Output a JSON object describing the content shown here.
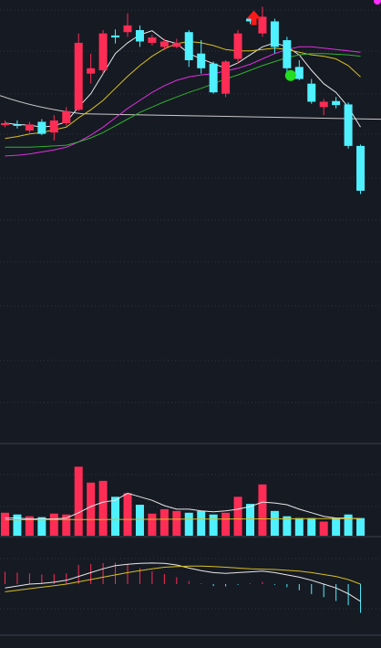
{
  "colors": {
    "background": "#161a23",
    "grid": "#2e3440",
    "divider": "#3a404c",
    "up": "#ff2d55",
    "down": "#4ff0ff",
    "ma_white": "#e8e8e8",
    "ma_yellow": "#d8c020",
    "ma_magenta": "#e030e0",
    "ma_green": "#30b030",
    "baseline": "#c8c8c8",
    "buy_marker": "#ff1a1a",
    "sell_marker": "#22dd22",
    "corner_dot": "#ff2bff"
  },
  "chart_data": [
    {
      "type": "candlestick",
      "name": "price",
      "baseline": 9.8,
      "ylim": [
        7.0,
        11.5
      ],
      "candles": [
        {
          "o": 9.63,
          "h": 9.7,
          "l": 9.6,
          "c": 9.66
        },
        {
          "o": 9.64,
          "h": 9.7,
          "l": 9.58,
          "c": 9.62
        },
        {
          "o": 9.55,
          "h": 9.68,
          "l": 9.52,
          "c": 9.64
        },
        {
          "o": 9.68,
          "h": 9.72,
          "l": 9.48,
          "c": 9.5
        },
        {
          "o": 9.52,
          "h": 9.78,
          "l": 9.4,
          "c": 9.7
        },
        {
          "o": 9.66,
          "h": 9.9,
          "l": 9.62,
          "c": 9.84
        },
        {
          "o": 9.86,
          "h": 11.0,
          "l": 9.84,
          "c": 10.86
        },
        {
          "o": 10.4,
          "h": 10.7,
          "l": 10.25,
          "c": 10.48
        },
        {
          "o": 10.45,
          "h": 11.05,
          "l": 10.4,
          "c": 11.0
        },
        {
          "o": 10.97,
          "h": 11.06,
          "l": 10.85,
          "c": 10.94
        },
        {
          "o": 11.02,
          "h": 11.3,
          "l": 10.95,
          "c": 11.12
        },
        {
          "o": 11.05,
          "h": 11.12,
          "l": 10.8,
          "c": 10.88
        },
        {
          "o": 10.86,
          "h": 10.98,
          "l": 10.82,
          "c": 10.94
        },
        {
          "o": 10.8,
          "h": 10.92,
          "l": 10.75,
          "c": 10.88
        },
        {
          "o": 10.8,
          "h": 10.92,
          "l": 10.78,
          "c": 10.86
        },
        {
          "o": 11.02,
          "h": 11.05,
          "l": 10.5,
          "c": 10.6
        },
        {
          "o": 10.7,
          "h": 10.9,
          "l": 10.4,
          "c": 10.48
        },
        {
          "o": 10.55,
          "h": 10.58,
          "l": 10.1,
          "c": 10.12
        },
        {
          "o": 10.1,
          "h": 10.6,
          "l": 10.05,
          "c": 10.58
        },
        {
          "o": 10.62,
          "h": 11.05,
          "l": 10.55,
          "c": 11.0
        },
        {
          "o": 11.22,
          "h": 11.27,
          "l": 11.14,
          "c": 11.18
        },
        {
          "o": 11.0,
          "h": 11.4,
          "l": 10.95,
          "c": 11.25
        },
        {
          "o": 11.18,
          "h": 11.22,
          "l": 10.7,
          "c": 10.8
        },
        {
          "o": 10.9,
          "h": 10.95,
          "l": 10.42,
          "c": 10.48
        },
        {
          "o": 10.5,
          "h": 10.6,
          "l": 10.3,
          "c": 10.32
        },
        {
          "o": 10.25,
          "h": 10.32,
          "l": 9.95,
          "c": 9.98
        },
        {
          "o": 9.9,
          "h": 10.02,
          "l": 9.78,
          "c": 9.98
        },
        {
          "o": 9.99,
          "h": 10.05,
          "l": 9.88,
          "c": 9.93
        },
        {
          "o": 9.94,
          "h": 9.97,
          "l": 9.28,
          "c": 9.32
        },
        {
          "o": 9.32,
          "h": 9.34,
          "l": 8.6,
          "c": 8.65
        }
      ],
      "moving_averages": [
        {
          "color_key": "ma_white",
          "values": [
            9.66,
            9.64,
            9.63,
            9.6,
            9.62,
            9.68,
            9.9,
            10.1,
            10.4,
            10.7,
            10.86,
            10.98,
            11.04,
            10.9,
            10.85,
            10.7,
            10.62,
            10.55,
            10.48,
            10.56,
            10.68,
            10.8,
            10.86,
            10.8,
            10.68,
            10.45,
            10.25,
            10.12,
            9.9,
            9.6
          ]
        },
        {
          "color_key": "ma_yellow",
          "values": [
            9.43,
            9.46,
            9.5,
            9.52,
            9.56,
            9.6,
            9.74,
            9.86,
            10.0,
            10.18,
            10.36,
            10.52,
            10.66,
            10.77,
            10.85,
            10.88,
            10.86,
            10.82,
            10.76,
            10.74,
            10.74,
            10.76,
            10.78,
            10.76,
            10.72,
            10.68,
            10.66,
            10.62,
            10.52,
            10.35
          ]
        },
        {
          "color_key": "ma_magenta",
          "values": [
            9.17,
            9.18,
            9.2,
            9.23,
            9.26,
            9.3,
            9.38,
            9.48,
            9.6,
            9.74,
            9.88,
            10.0,
            10.12,
            10.22,
            10.3,
            10.35,
            10.38,
            10.4,
            10.44,
            10.48,
            10.54,
            10.62,
            10.7,
            10.76,
            10.8,
            10.8,
            10.78,
            10.76,
            10.74,
            10.72
          ]
        },
        {
          "color_key": "ma_green",
          "values": [
            9.3,
            9.3,
            9.3,
            9.31,
            9.32,
            9.33,
            9.38,
            9.44,
            9.52,
            9.62,
            9.72,
            9.82,
            9.9,
            9.98,
            10.05,
            10.12,
            10.18,
            10.25,
            10.32,
            10.38,
            10.45,
            10.52,
            10.58,
            10.64,
            10.68,
            10.7,
            10.7,
            10.69,
            10.68,
            10.66
          ]
        }
      ]
    },
    {
      "type": "bar",
      "name": "volume",
      "ylim": [
        0,
        100
      ],
      "values": [
        26,
        24,
        22,
        21,
        25,
        24,
        78,
        60,
        62,
        44,
        48,
        35,
        25,
        30,
        28,
        26,
        28,
        24,
        26,
        44,
        36,
        58,
        28,
        22,
        20,
        20,
        16,
        20,
        24,
        20
      ],
      "ma": [
        20,
        20,
        19,
        19,
        19,
        20,
        26,
        33,
        38,
        40,
        48,
        44,
        40,
        34,
        30,
        30,
        28,
        27,
        28,
        30,
        33,
        38,
        37,
        35,
        30,
        26,
        22,
        20,
        20,
        19
      ]
    },
    {
      "type": "bar",
      "name": "macd",
      "ylim": [
        -1.0,
        1.0
      ],
      "values": [
        0.32,
        0.3,
        0.28,
        0.25,
        0.26,
        0.28,
        0.5,
        0.52,
        0.55,
        0.56,
        0.52,
        0.42,
        0.34,
        0.26,
        0.18,
        0.08,
        0.02,
        -0.05,
        -0.06,
        -0.02,
        0.02,
        0.06,
        -0.02,
        -0.08,
        -0.16,
        -0.26,
        -0.34,
        -0.44,
        -0.55,
        -0.75
      ],
      "line_white": [
        -0.1,
        -0.05,
        0.0,
        0.02,
        0.05,
        0.1,
        0.2,
        0.3,
        0.4,
        0.48,
        0.52,
        0.54,
        0.55,
        0.54,
        0.5,
        0.42,
        0.35,
        0.3,
        0.28,
        0.3,
        0.32,
        0.34,
        0.3,
        0.24,
        0.18,
        0.1,
        0.0,
        -0.1,
        -0.25,
        -0.45
      ],
      "line_yellow": [
        -0.2,
        -0.16,
        -0.12,
        -0.08,
        -0.04,
        0.0,
        0.06,
        0.12,
        0.18,
        0.24,
        0.3,
        0.35,
        0.4,
        0.44,
        0.46,
        0.47,
        0.47,
        0.46,
        0.44,
        0.42,
        0.4,
        0.39,
        0.38,
        0.36,
        0.34,
        0.3,
        0.25,
        0.2,
        0.12,
        0.0
      ]
    }
  ]
}
